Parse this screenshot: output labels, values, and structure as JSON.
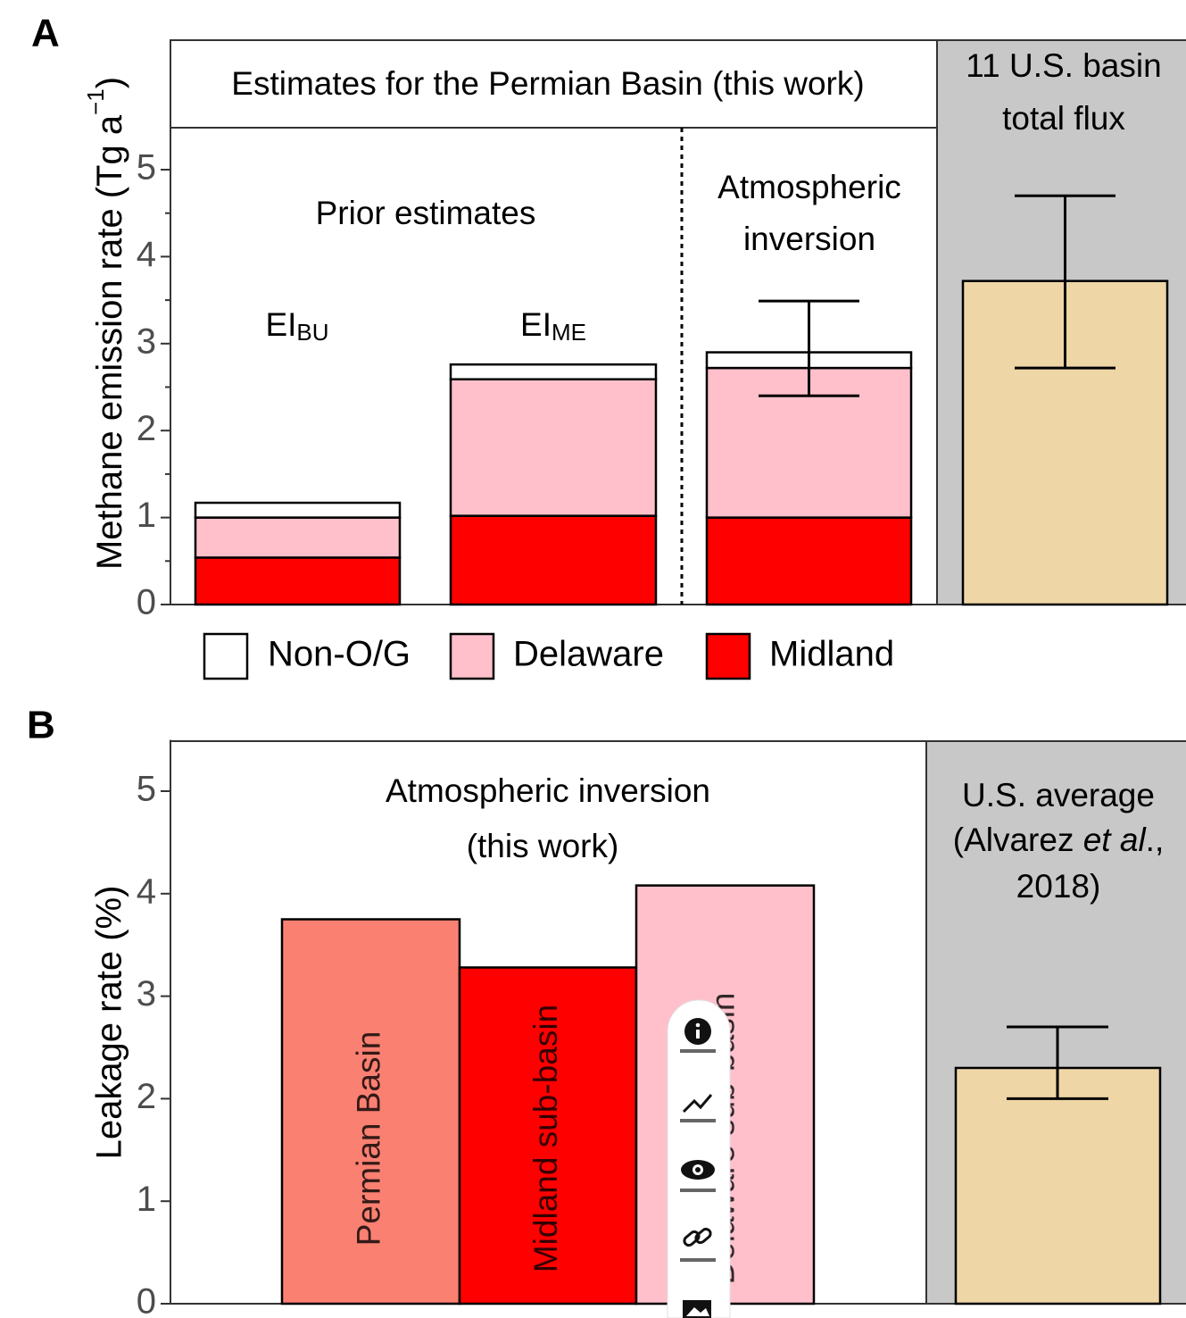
{
  "chart_data": [
    {
      "type": "stacked-bar",
      "panel_label": "A",
      "title": "Estimates for the Permian Basin (this work)",
      "reference_title": [
        "11 U.S. basin",
        "total flux"
      ],
      "group_labels": [
        [
          "Prior estimates"
        ],
        [
          "Atmospheric",
          "inversion"
        ]
      ],
      "ylabel": [
        "Methane emission rate (Tg a",
        "−1",
        ")"
      ],
      "categories": [
        [
          "EI",
          "BU"
        ],
        [
          "EI",
          "ME"
        ],
        null
      ],
      "series": [
        {
          "name": "Non-O/G",
          "color": "#ffffff",
          "values": [
            0.17,
            0.17,
            0.18
          ]
        },
        {
          "name": "Delaware",
          "color": "#ffc0cb",
          "values": [
            0.46,
            1.57,
            1.72
          ]
        },
        {
          "name": "Midland",
          "color": "#ff0000",
          "values": [
            0.54,
            1.02,
            1.0
          ]
        }
      ],
      "error_bars": [
        null,
        null,
        [
          2.4,
          3.49
        ]
      ],
      "reference": {
        "value": 3.72,
        "error": [
          2.72,
          4.7
        ],
        "color": "#eed6a6"
      },
      "ylim": [
        0,
        5.5
      ],
      "yticks": [
        0,
        1,
        2,
        3,
        4,
        5
      ],
      "minor_yticks": [
        0.5,
        1.5,
        2.5,
        3.5,
        4.5
      ]
    },
    {
      "type": "bar",
      "panel_label": "B",
      "title": [
        "Atmospheric inversion",
        "(this work)"
      ],
      "reference_title": [
        [
          "U.S. average"
        ],
        [
          "(Alvarez ",
          "et al",
          "., "
        ],
        [
          "2018)"
        ]
      ],
      "ylabel": "Leakage rate (%)",
      "categories": [
        "Permian Basin",
        "Midland sub-basin",
        "Delaware sub-basin"
      ],
      "values": [
        3.75,
        3.28,
        4.08
      ],
      "colors": [
        "#fa8072",
        "#ff0000",
        "#ffc0cb"
      ],
      "reference": {
        "value": 2.3,
        "error": [
          2.0,
          2.7
        ],
        "color": "#eed6a6"
      },
      "ylim": [
        0,
        5.5
      ],
      "yticks": [
        0,
        1,
        2,
        3,
        4,
        5
      ]
    }
  ]
}
